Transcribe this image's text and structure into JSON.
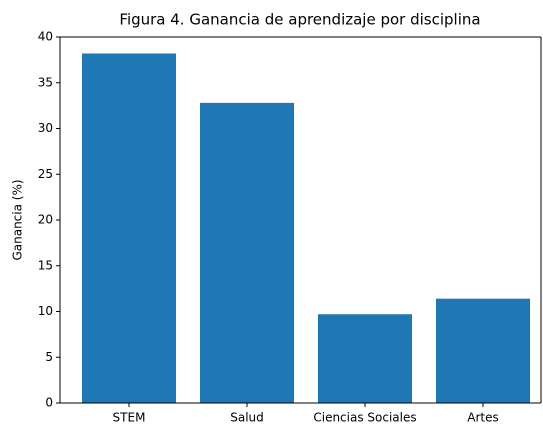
{
  "chart_data": {
    "type": "bar",
    "title": "Figura 4. Ganancia de aprendizaje por disciplina",
    "ylabel": "Ganancia (%)",
    "categories": [
      "STEM",
      "Salud",
      "Ciencias Sociales",
      "Artes"
    ],
    "values": [
      38.2,
      32.8,
      9.7,
      11.4
    ],
    "color": "#1f77b4",
    "ylim": [
      0,
      40
    ],
    "yticks": [
      0,
      5,
      10,
      15,
      20,
      25,
      30,
      35,
      40
    ],
    "grid": false
  }
}
